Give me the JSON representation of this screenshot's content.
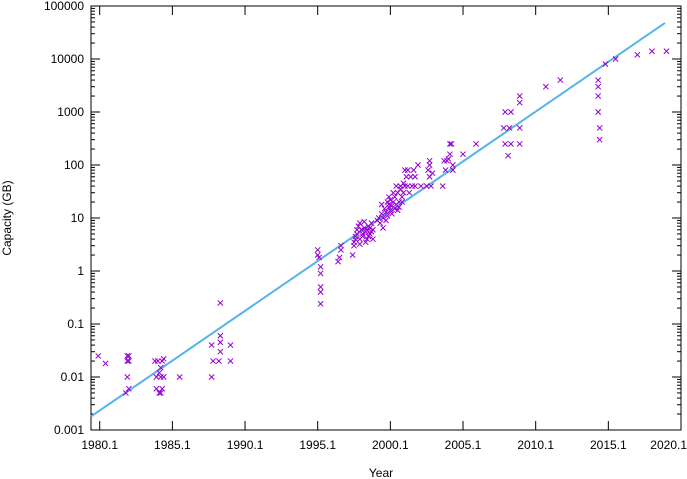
{
  "chart_data": {
    "type": "scatter",
    "title": "",
    "xlabel": "Year",
    "ylabel": "Capacity (GB)",
    "xlim": [
      1979.5,
      2020.1
    ],
    "ylim": [
      0.001,
      100000
    ],
    "yscale": "log",
    "grid": false,
    "legend": "none",
    "x_ticks": [
      {
        "value": 1980.1,
        "label": "1980.1"
      },
      {
        "value": 1985.1,
        "label": "1985.1"
      },
      {
        "value": 1990.1,
        "label": "1990.1"
      },
      {
        "value": 1995.1,
        "label": "1995.1"
      },
      {
        "value": 2000.1,
        "label": "2000.1"
      },
      {
        "value": 2005.1,
        "label": "2005.1"
      },
      {
        "value": 2010.1,
        "label": "2010.1"
      },
      {
        "value": 2015.1,
        "label": "2015.1"
      },
      {
        "value": 2020.1,
        "label": "2020.1"
      }
    ],
    "y_ticks": [
      {
        "value": 0.001,
        "label": "0.001"
      },
      {
        "value": 0.01,
        "label": "0.01"
      },
      {
        "value": 0.1,
        "label": "0.1"
      },
      {
        "value": 1,
        "label": "1"
      },
      {
        "value": 10,
        "label": "10"
      },
      {
        "value": 100,
        "label": "100"
      },
      {
        "value": 1000,
        "label": "1000"
      },
      {
        "value": 10000,
        "label": "10000"
      },
      {
        "value": 100000,
        "label": "100000"
      }
    ],
    "colors": {
      "points": "#9400d3",
      "trend": "#56b4e9"
    },
    "series": [
      {
        "kind": "points",
        "points": [
          [
            1980.0,
            0.025
          ],
          [
            1980.5,
            0.018
          ],
          [
            1981.9,
            0.005
          ],
          [
            1982.0,
            0.025
          ],
          [
            1982.0,
            0.02
          ],
          [
            1982.0,
            0.01
          ],
          [
            1982.1,
            0.006
          ],
          [
            1982.1,
            0.025
          ],
          [
            1982.1,
            0.02
          ],
          [
            1983.9,
            0.02
          ],
          [
            1984.0,
            0.01
          ],
          [
            1984.0,
            0.006
          ],
          [
            1984.1,
            0.02
          ],
          [
            1984.2,
            0.005
          ],
          [
            1984.2,
            0.012
          ],
          [
            1984.3,
            0.015
          ],
          [
            1984.3,
            0.01
          ],
          [
            1984.4,
            0.02
          ],
          [
            1984.4,
            0.006
          ],
          [
            1984.5,
            0.022
          ],
          [
            1984.5,
            0.01
          ],
          [
            1984.3,
            0.005
          ],
          [
            1985.6,
            0.01
          ],
          [
            1987.8,
            0.01
          ],
          [
            1987.8,
            0.04
          ],
          [
            1987.9,
            0.02
          ],
          [
            1988.3,
            0.02
          ],
          [
            1988.4,
            0.25
          ],
          [
            1988.4,
            0.06
          ],
          [
            1988.4,
            0.045
          ],
          [
            1988.4,
            0.03
          ],
          [
            1989.1,
            0.04
          ],
          [
            1989.1,
            0.02
          ],
          [
            1995.1,
            2.5
          ],
          [
            1995.1,
            2.0
          ],
          [
            1995.2,
            1.8
          ],
          [
            1995.3,
            1.2
          ],
          [
            1995.3,
            0.9
          ],
          [
            1995.3,
            0.5
          ],
          [
            1995.3,
            0.4
          ],
          [
            1995.3,
            0.24
          ],
          [
            1996.5,
            1.5
          ],
          [
            1996.6,
            1.8
          ],
          [
            1996.7,
            2.5
          ],
          [
            1996.7,
            3.0
          ],
          [
            1997.5,
            2.0
          ],
          [
            1997.6,
            3.0
          ],
          [
            1997.6,
            3.5
          ],
          [
            1997.7,
            4.0
          ],
          [
            1997.7,
            4.5
          ],
          [
            1997.8,
            6.0
          ],
          [
            1997.8,
            5.0
          ],
          [
            1997.9,
            7.0
          ],
          [
            1998.0,
            3.2
          ],
          [
            1998.0,
            8.0
          ],
          [
            1998.0,
            4.0
          ],
          [
            1998.1,
            6.0
          ],
          [
            1998.2,
            4.5
          ],
          [
            1998.2,
            5.0
          ],
          [
            1998.3,
            8.5
          ],
          [
            1998.3,
            6.5
          ],
          [
            1998.4,
            3.5
          ],
          [
            1998.4,
            5.5
          ],
          [
            1998.5,
            4.0
          ],
          [
            1998.5,
            6.0
          ],
          [
            1998.6,
            7.0
          ],
          [
            1998.6,
            4.5
          ],
          [
            1998.7,
            5.0
          ],
          [
            1998.7,
            6.5
          ],
          [
            1998.8,
            8.0
          ],
          [
            1998.8,
            5.5
          ],
          [
            1998.9,
            4.0
          ],
          [
            1998.9,
            6.0
          ],
          [
            1999.2,
            9.0
          ],
          [
            1999.3,
            10.0
          ],
          [
            1999.4,
            8.0
          ],
          [
            1999.5,
            12.0
          ],
          [
            1999.5,
            18.0
          ],
          [
            1999.6,
            6.5
          ],
          [
            1999.6,
            10.0
          ],
          [
            1999.7,
            15.0
          ],
          [
            1999.8,
            9.0
          ],
          [
            1999.8,
            13.0
          ],
          [
            1999.9,
            11.0
          ],
          [
            1999.9,
            20.0
          ],
          [
            2000.0,
            16.0
          ],
          [
            2000.0,
            25.0
          ],
          [
            2000.0,
            18.0
          ],
          [
            2000.1,
            14.0
          ],
          [
            2000.1,
            22.0
          ],
          [
            2000.2,
            12.0
          ],
          [
            2000.2,
            17.0
          ],
          [
            2000.3,
            20.0
          ],
          [
            2000.3,
            30.0
          ],
          [
            2000.4,
            15.0
          ],
          [
            2000.4,
            25.0
          ],
          [
            2000.5,
            18.0
          ],
          [
            2000.5,
            40.0
          ],
          [
            2000.6,
            14.0
          ],
          [
            2000.6,
            30.0
          ],
          [
            2000.7,
            20.0
          ],
          [
            2000.7,
            16.0
          ],
          [
            2000.8,
            35.0
          ],
          [
            2000.8,
            40.0
          ],
          [
            2000.9,
            25.0
          ],
          [
            2000.9,
            20.0
          ],
          [
            2001.0,
            45.0
          ],
          [
            2001.0,
            30.0
          ],
          [
            2001.1,
            80.0
          ],
          [
            2001.1,
            40.0
          ],
          [
            2001.2,
            60.0
          ],
          [
            2001.3,
            40.0
          ],
          [
            2001.3,
            80.0
          ],
          [
            2001.4,
            30.0
          ],
          [
            2001.5,
            60.0
          ],
          [
            2001.6,
            40.0
          ],
          [
            2001.7,
            80.0
          ],
          [
            2001.8,
            40.0
          ],
          [
            2001.8,
            60.0
          ],
          [
            2002.0,
            100.0
          ],
          [
            2002.2,
            40.0
          ],
          [
            2002.6,
            40.0
          ],
          [
            2002.7,
            80.0
          ],
          [
            2002.8,
            120.0
          ],
          [
            2002.8,
            100.0
          ],
          [
            2002.8,
            60.0
          ],
          [
            2002.9,
            40.0
          ],
          [
            2003.0,
            70.0
          ],
          [
            2003.7,
            40.0
          ],
          [
            2003.8,
            120.0
          ],
          [
            2003.9,
            80.0
          ],
          [
            2004.0,
            120.0
          ],
          [
            2004.1,
            130.0
          ],
          [
            2004.2,
            250.0
          ],
          [
            2004.2,
            160.0
          ],
          [
            2004.3,
            250.0
          ],
          [
            2004.4,
            100.0
          ],
          [
            2004.4,
            80.0
          ],
          [
            2005.1,
            160.0
          ],
          [
            2006.0,
            250.0
          ],
          [
            2007.9,
            500.0
          ],
          [
            2008.0,
            1000.0
          ],
          [
            2008.0,
            250.0
          ],
          [
            2008.2,
            150.0
          ],
          [
            2008.3,
            500.0
          ],
          [
            2008.4,
            1000.0
          ],
          [
            2008.4,
            250.0
          ],
          [
            2009.0,
            2000.0
          ],
          [
            2009.0,
            1500.0
          ],
          [
            2009.0,
            500.0
          ],
          [
            2009.0,
            250.0
          ],
          [
            2010.8,
            3000.0
          ],
          [
            2011.8,
            4000.0
          ],
          [
            2014.4,
            4000.0
          ],
          [
            2014.4,
            3000.0
          ],
          [
            2014.4,
            2000.0
          ],
          [
            2014.4,
            1000.0
          ],
          [
            2014.5,
            500.0
          ],
          [
            2014.5,
            300.0
          ],
          [
            2014.9,
            8000.0
          ],
          [
            2015.6,
            10000.0
          ],
          [
            2017.1,
            12000.0
          ],
          [
            2018.1,
            14000.0
          ],
          [
            2019.1,
            14000.0
          ]
        ]
      },
      {
        "kind": "trend",
        "points": [
          [
            1979.5,
            0.0018
          ],
          [
            2019.0,
            48000
          ]
        ]
      }
    ]
  }
}
